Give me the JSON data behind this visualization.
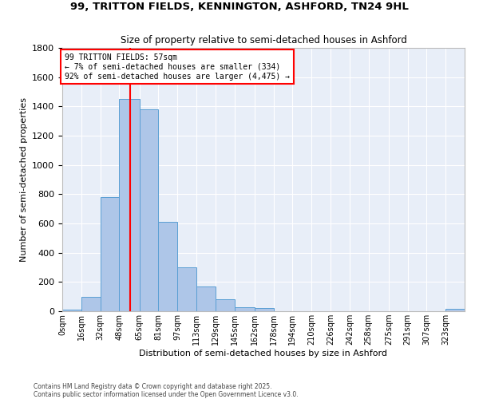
{
  "title": "99, TRITTON FIELDS, KENNINGTON, ASHFORD, TN24 9HL",
  "subtitle": "Size of property relative to semi-detached houses in Ashford",
  "xlabel": "Distribution of semi-detached houses by size in Ashford",
  "ylabel": "Number of semi-detached properties",
  "footnote": "Contains HM Land Registry data © Crown copyright and database right 2025.\nContains public sector information licensed under the Open Government Licence v3.0.",
  "bin_labels": [
    "0sqm",
    "16sqm",
    "32sqm",
    "48sqm",
    "65sqm",
    "81sqm",
    "97sqm",
    "113sqm",
    "129sqm",
    "145sqm",
    "162sqm",
    "178sqm",
    "194sqm",
    "210sqm",
    "226sqm",
    "242sqm",
    "258sqm",
    "275sqm",
    "291sqm",
    "307sqm",
    "323sqm"
  ],
  "bar_values": [
    10,
    100,
    780,
    1450,
    1380,
    610,
    300,
    170,
    80,
    30,
    22,
    0,
    0,
    0,
    0,
    0,
    0,
    0,
    0,
    0,
    15
  ],
  "bar_color": "#aec6e8",
  "bar_edge_color": "#5a9fd4",
  "vline_x": 57,
  "vline_color": "red",
  "annotation_text": "99 TRITTON FIELDS: 57sqm\n← 7% of semi-detached houses are smaller (334)\n92% of semi-detached houses are larger (4,475) →",
  "ylim": [
    0,
    1800
  ],
  "yticks": [
    0,
    200,
    400,
    600,
    800,
    1000,
    1200,
    1400,
    1600,
    1800
  ],
  "background_color": "#e8eef8",
  "grid_color": "white",
  "bin_edges": [
    0,
    16,
    32,
    48,
    65,
    81,
    97,
    113,
    129,
    145,
    162,
    178,
    194,
    210,
    226,
    242,
    258,
    275,
    291,
    307,
    323,
    339
  ]
}
